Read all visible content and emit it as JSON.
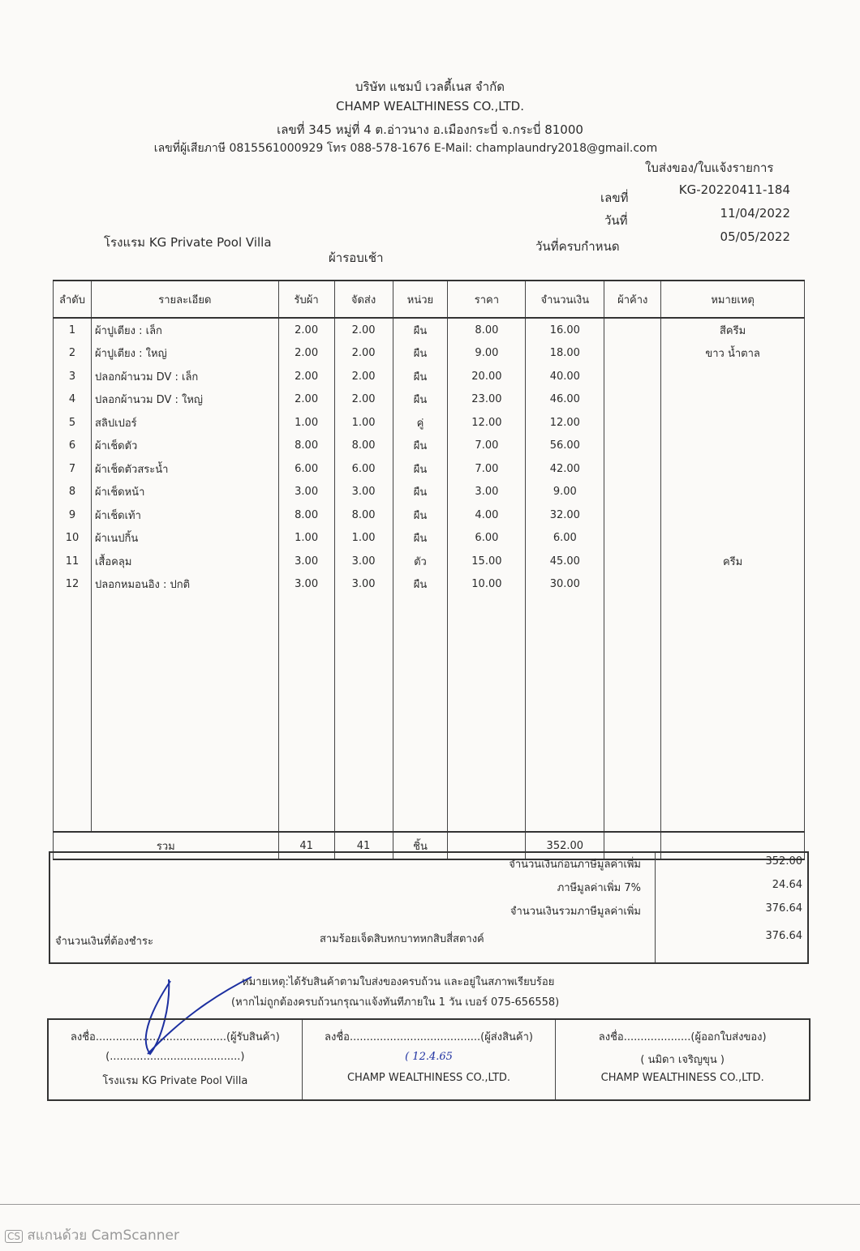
{
  "company": {
    "name_th": "บริษัท แชมป์ เวลตี้เนส จำกัด",
    "name_en": "CHAMP WEALTHINESS CO.,LTD.",
    "address": "เลขที่ 345 หมู่ที่ 4 ต.อ่าวนาง อ.เมืองกระบี่ จ.กระบี่ 81000",
    "contact": "เลขที่ผู้เสียภาษี 0815561000929 โทร 088-578-1676 E-Mail: champlaundry2018@gmail.com"
  },
  "doc": {
    "title": "ใบส่งของ/ใบแจ้งรายการ",
    "no_label": "เลขที่",
    "no": "KG-20220411-184",
    "date_label": "วันที่",
    "date": "11/04/2022",
    "due_label": "วันที่ครบกำหนด",
    "due": "05/05/2022",
    "customer": "โรงแรม KG Private Pool Villa",
    "round": "ผ้ารอบเช้า"
  },
  "table": {
    "headers": [
      "ลำดับ",
      "รายละเอียด",
      "รับผ้า",
      "จัดส่ง",
      "หน่วย",
      "ราคา",
      "จำนวนเงิน",
      "ผ้าค้าง",
      "หมายเหตุ"
    ],
    "rows": [
      {
        "no": "1",
        "desc": "ผ้าปูเตียง : เล็ก",
        "recv": "2.00",
        "sent": "2.00",
        "unit": "ผืน",
        "price": "8.00",
        "amount": "16.00",
        "note": "สีครีม"
      },
      {
        "no": "2",
        "desc": "ผ้าปูเตียง : ใหญ่",
        "recv": "2.00",
        "sent": "2.00",
        "unit": "ผืน",
        "price": "9.00",
        "amount": "18.00",
        "note": "ขาว น้ำตาล"
      },
      {
        "no": "3",
        "desc": "ปลอกผ้านวม DV : เล็ก",
        "recv": "2.00",
        "sent": "2.00",
        "unit": "ผืน",
        "price": "20.00",
        "amount": "40.00",
        "note": ""
      },
      {
        "no": "4",
        "desc": "ปลอกผ้านวม DV : ใหญ่",
        "recv": "2.00",
        "sent": "2.00",
        "unit": "ผืน",
        "price": "23.00",
        "amount": "46.00",
        "note": ""
      },
      {
        "no": "5",
        "desc": "สลิปเปอร์",
        "recv": "1.00",
        "sent": "1.00",
        "unit": "คู่",
        "price": "12.00",
        "amount": "12.00",
        "note": ""
      },
      {
        "no": "6",
        "desc": "ผ้าเช็ดตัว",
        "recv": "8.00",
        "sent": "8.00",
        "unit": "ผืน",
        "price": "7.00",
        "amount": "56.00",
        "note": ""
      },
      {
        "no": "7",
        "desc": "ผ้าเช็ดตัวสระน้ำ",
        "recv": "6.00",
        "sent": "6.00",
        "unit": "ผืน",
        "price": "7.00",
        "amount": "42.00",
        "note": ""
      },
      {
        "no": "8",
        "desc": "ผ้าเช็ดหน้า",
        "recv": "3.00",
        "sent": "3.00",
        "unit": "ผืน",
        "price": "3.00",
        "amount": "9.00",
        "note": ""
      },
      {
        "no": "9",
        "desc": "ผ้าเช็ดเท้า",
        "recv": "8.00",
        "sent": "8.00",
        "unit": "ผืน",
        "price": "4.00",
        "amount": "32.00",
        "note": ""
      },
      {
        "no": "10",
        "desc": "ผ้าเนปกิ้น",
        "recv": "1.00",
        "sent": "1.00",
        "unit": "ผืน",
        "price": "6.00",
        "amount": "6.00",
        "note": ""
      },
      {
        "no": "11",
        "desc": "เสื้อคลุม",
        "recv": "3.00",
        "sent": "3.00",
        "unit": "ตัว",
        "price": "15.00",
        "amount": "45.00",
        "note": "ครีม"
      },
      {
        "no": "12",
        "desc": "ปลอกหมอนอิง : ปกติ",
        "recv": "3.00",
        "sent": "3.00",
        "unit": "ผืน",
        "price": "10.00",
        "amount": "30.00",
        "note": ""
      }
    ],
    "total": {
      "label": "รวม",
      "recv": "41",
      "sent": "41",
      "unit": "ชิ้น",
      "amount": "352.00"
    }
  },
  "summary": {
    "subtotal_label": "จำนวนเงินก่อนภาษีมูลค่าเพิ่ม",
    "subtotal": "352.00",
    "vat_label": "ภาษีมูลค่าเพิ่ม 7%",
    "vat": "24.64",
    "grand_label": "จำนวนเงินรวมภาษีมูลค่าเพิ่ม",
    "grand": "376.64",
    "pay_label": "จำนวนเงินที่ต้องชำระ",
    "pay_words": "สามร้อยเจ็ดสิบหกบาทหกสิบสี่สตางค์",
    "pay": "376.64"
  },
  "note": {
    "line1": "หมายเหตุ:ได้รับสินค้าตามใบส่งของครบถ้วน และอยู่ในสภาพเรียบร้อย",
    "line2": "(หากไม่ถูกต้องครบถ้วนกรุณาแจ้งทันทีภายใน 1 วัน   เบอร์ 075-656558)"
  },
  "signatures": [
    {
      "line": "ลงชื่อ.......................................(ผู้รับสินค้า)",
      "name": "(.......................................)",
      "org": "โรงแรม KG Private Pool Villa"
    },
    {
      "line": "ลงชื่อ.......................................(ผู้ส่งสินค้า)",
      "name": "( 12.4.65",
      "org": "CHAMP WEALTHINESS CO.,LTD."
    },
    {
      "line": "ลงชื่อ....................(ผู้ออกใบส่งของ)",
      "name": "(      นมิดา เจริญขุน      )",
      "org": "CHAMP WEALTHINESS CO.,LTD."
    }
  ],
  "watermark": "สแกนด้วย CamScanner"
}
